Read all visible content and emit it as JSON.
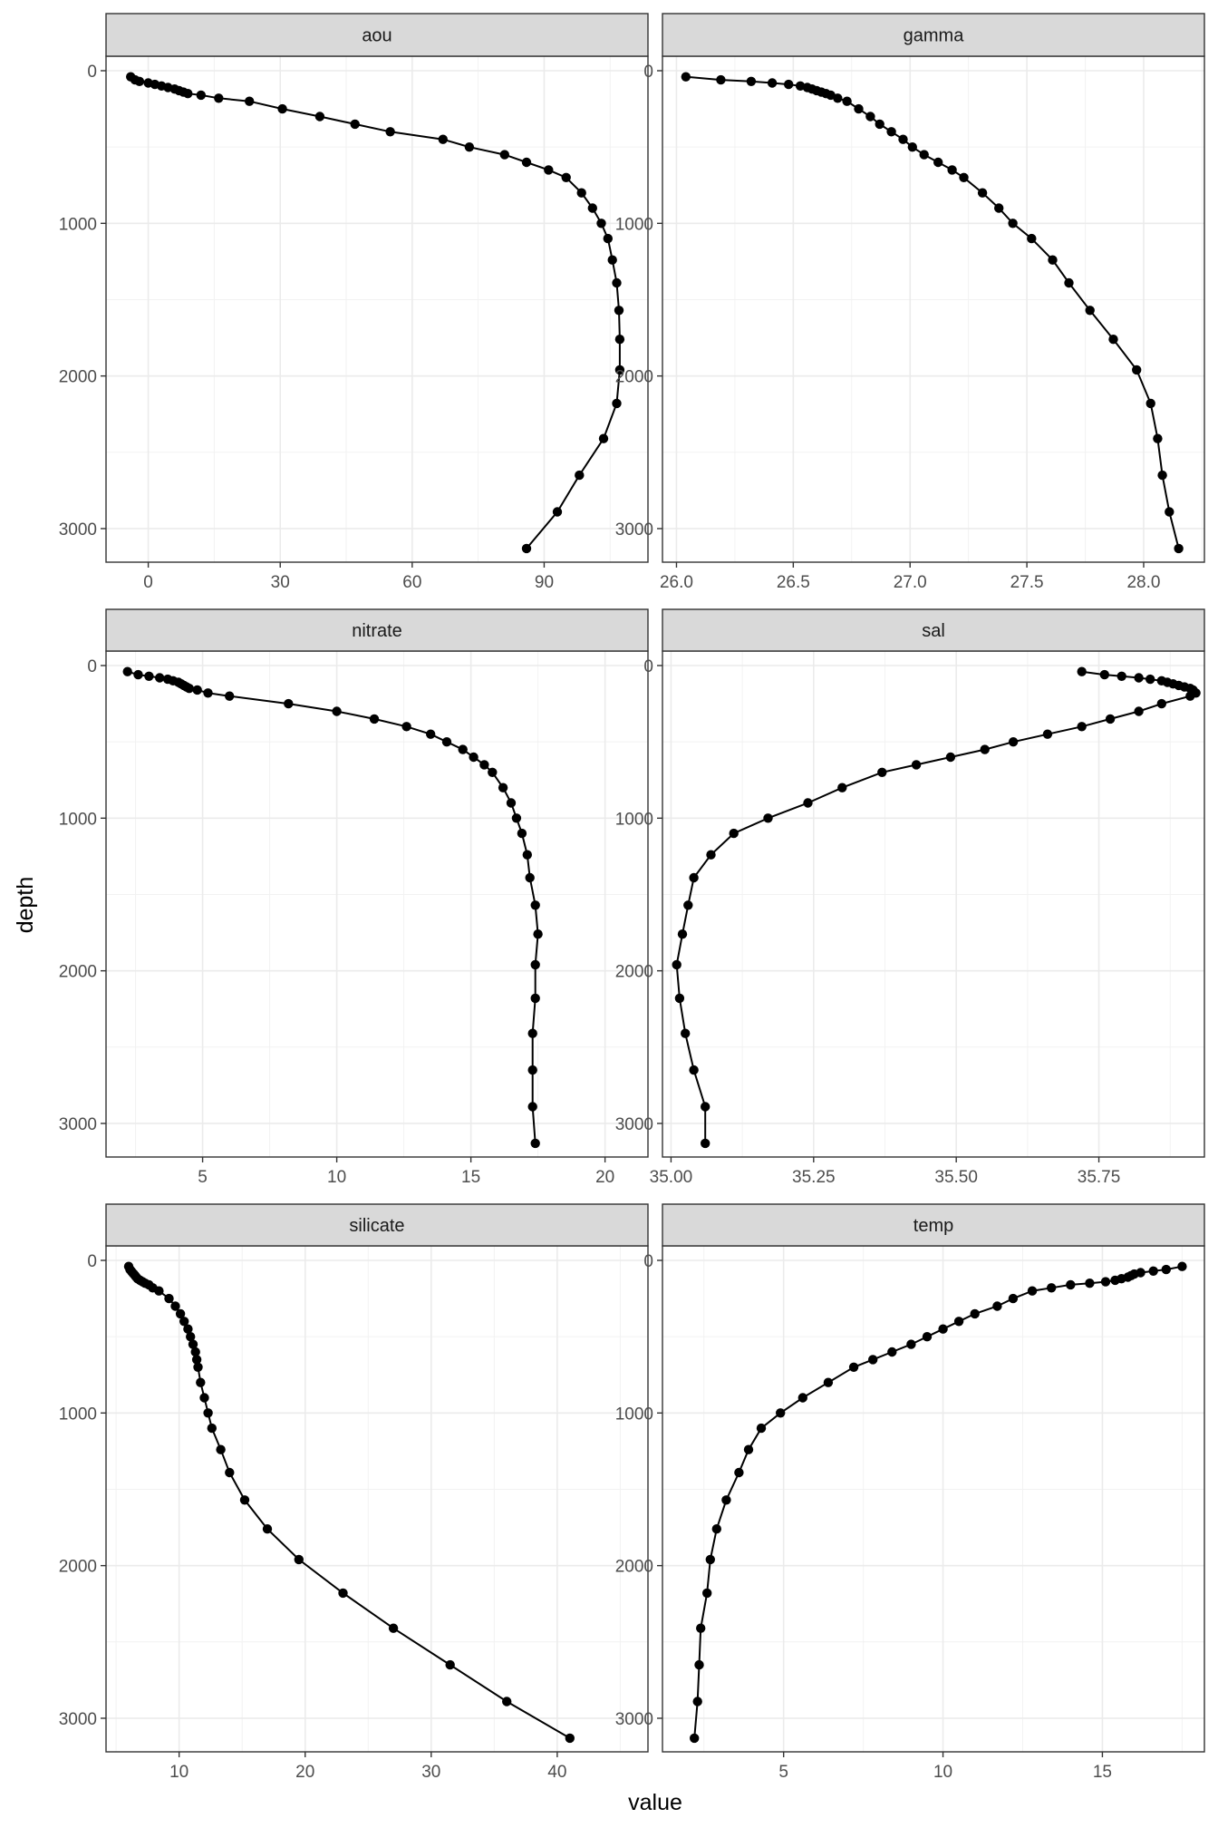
{
  "chart_data": {
    "type": "line",
    "layout": "facet grid, 2 columns x 3 rows, shared y axis (reversed)",
    "xlabel": "value",
    "ylabel": "depth",
    "ylim": [
      3220,
      -95
    ],
    "y_ticks": [
      0,
      1000,
      2000,
      3000
    ],
    "grid": true,
    "markers": true,
    "depth": [
      40,
      60,
      70,
      80,
      90,
      100,
      110,
      120,
      130,
      140,
      150,
      160,
      180,
      200,
      250,
      300,
      350,
      400,
      450,
      500,
      550,
      600,
      650,
      700,
      800,
      900,
      1000,
      1100,
      1240,
      1390,
      1570,
      1760,
      1960,
      2180,
      2410,
      2650,
      2890,
      3130
    ],
    "panels": [
      {
        "name": "aou",
        "xlim": [
          -9.6,
          113.6
        ],
        "x_ticks": [
          0,
          30,
          60,
          90
        ],
        "values": [
          -4,
          -3,
          -2,
          0,
          1.5,
          3,
          4.5,
          6,
          7,
          8,
          9,
          12,
          16,
          23,
          30.5,
          39,
          47,
          55,
          67,
          73,
          81,
          86,
          91,
          95,
          98.5,
          101,
          103,
          104.5,
          105.5,
          106.5,
          107,
          107.2,
          107.2,
          106.5,
          103.5,
          98,
          93,
          86
        ]
      },
      {
        "name": "gamma",
        "xlim": [
          25.94,
          28.26
        ],
        "x_ticks": [
          26.0,
          26.5,
          27.0,
          27.5,
          28.0
        ],
        "values": [
          26.04,
          26.19,
          26.32,
          26.41,
          26.48,
          26.53,
          26.56,
          26.58,
          26.6,
          26.62,
          26.64,
          26.66,
          26.69,
          26.73,
          26.78,
          26.83,
          26.87,
          26.92,
          26.97,
          27.01,
          27.06,
          27.12,
          27.18,
          27.23,
          27.31,
          27.38,
          27.44,
          27.52,
          27.61,
          27.68,
          27.77,
          27.87,
          27.97,
          28.03,
          28.06,
          28.08,
          28.11,
          28.15
        ]
      },
      {
        "name": "nitrate",
        "xlim": [
          1.4,
          21.6
        ],
        "x_ticks": [
          5,
          10,
          15,
          20
        ],
        "values": [
          2.2,
          2.6,
          3.0,
          3.4,
          3.7,
          3.9,
          4.1,
          4.2,
          4.3,
          4.4,
          4.5,
          4.8,
          5.2,
          6.0,
          8.2,
          10.0,
          11.4,
          12.6,
          13.5,
          14.1,
          14.7,
          15.1,
          15.5,
          15.8,
          16.2,
          16.5,
          16.7,
          16.9,
          17.1,
          17.2,
          17.4,
          17.5,
          17.4,
          17.4,
          17.3,
          17.3,
          17.3,
          17.4
        ]
      },
      {
        "name": "sal",
        "xlim": [
          34.985,
          35.935
        ],
        "x_ticks": [
          35.0,
          35.25,
          35.5,
          35.75
        ],
        "values": [
          35.72,
          35.76,
          35.79,
          35.82,
          35.84,
          35.86,
          35.87,
          35.88,
          35.89,
          35.9,
          35.91,
          35.915,
          35.92,
          35.91,
          35.86,
          35.82,
          35.77,
          35.72,
          35.66,
          35.6,
          35.55,
          35.49,
          35.43,
          35.37,
          35.3,
          35.24,
          35.17,
          35.11,
          35.07,
          35.04,
          35.03,
          35.02,
          35.01,
          35.015,
          35.025,
          35.04,
          35.06,
          35.06
        ]
      },
      {
        "name": "silicate",
        "xlim": [
          4.2,
          47.2
        ],
        "x_ticks": [
          10,
          20,
          30,
          40
        ],
        "values": [
          6.0,
          6.1,
          6.2,
          6.3,
          6.4,
          6.5,
          6.6,
          6.7,
          6.9,
          7.1,
          7.3,
          7.6,
          7.9,
          8.4,
          9.2,
          9.7,
          10.1,
          10.4,
          10.7,
          10.9,
          11.1,
          11.3,
          11.4,
          11.5,
          11.7,
          12.0,
          12.3,
          12.6,
          13.3,
          14.0,
          15.2,
          17.0,
          19.5,
          23.0,
          27.0,
          31.5,
          36.0,
          41.0
        ]
      },
      {
        "name": "temp",
        "xlim": [
          1.2,
          18.2
        ],
        "x_ticks": [
          5,
          10,
          15
        ],
        "values": [
          17.5,
          17.0,
          16.6,
          16.2,
          16.0,
          15.9,
          15.8,
          15.6,
          15.4,
          15.1,
          14.6,
          14.0,
          13.4,
          12.8,
          12.2,
          11.7,
          11.0,
          10.5,
          10.0,
          9.5,
          9.0,
          8.4,
          7.8,
          7.2,
          6.4,
          5.6,
          4.9,
          4.3,
          3.9,
          3.6,
          3.2,
          2.9,
          2.7,
          2.6,
          2.4,
          2.35,
          2.3,
          2.2
        ]
      }
    ]
  }
}
